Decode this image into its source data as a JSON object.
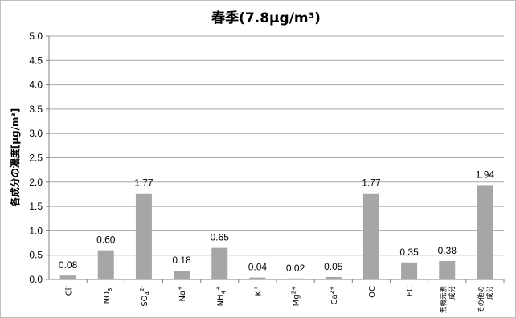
{
  "chart_data": {
    "type": "bar",
    "title": "春季(7.8μg/m³)",
    "ylabel": "各成分の濃度[μg/m³]",
    "xlabel": "",
    "ylim": [
      0,
      5.0
    ],
    "ytick_step": 0.5,
    "yticks": [
      "0.0",
      "0.5",
      "1.0",
      "1.5",
      "2.0",
      "2.5",
      "3.0",
      "3.5",
      "4.0",
      "4.5",
      "5.0"
    ],
    "grid": true,
    "bar_color": "#a6a6a6",
    "categories": [
      {
        "base": "Cl",
        "sup": "-",
        "sub": ""
      },
      {
        "base": "NO",
        "sub": "3",
        "sup": "-"
      },
      {
        "base": "SO",
        "sub": "4",
        "sup": "2-"
      },
      {
        "base": "Na",
        "sup": "+",
        "sub": ""
      },
      {
        "base": "NH",
        "sub": "4",
        "sup": "+"
      },
      {
        "base": "K",
        "sup": "+",
        "sub": ""
      },
      {
        "base": "Mg",
        "sup": "2+",
        "sub": ""
      },
      {
        "base": "Ca",
        "sup": "2+",
        "sub": ""
      },
      {
        "base": "OC",
        "sup": "",
        "sub": ""
      },
      {
        "base": "EC",
        "sup": "",
        "sub": ""
      },
      {
        "lines": [
          "無機元素",
          "成分"
        ]
      },
      {
        "lines": [
          "その他の",
          "成分"
        ]
      }
    ],
    "values": [
      0.08,
      0.6,
      1.77,
      0.18,
      0.65,
      0.04,
      0.02,
      0.05,
      1.77,
      0.35,
      0.38,
      1.94
    ],
    "labels": [
      "0.08",
      "0.60",
      "1.77",
      "0.18",
      "0.65",
      "0.04",
      "0.02",
      "0.05",
      "1.77",
      "0.35",
      "0.38",
      "1.94"
    ]
  }
}
